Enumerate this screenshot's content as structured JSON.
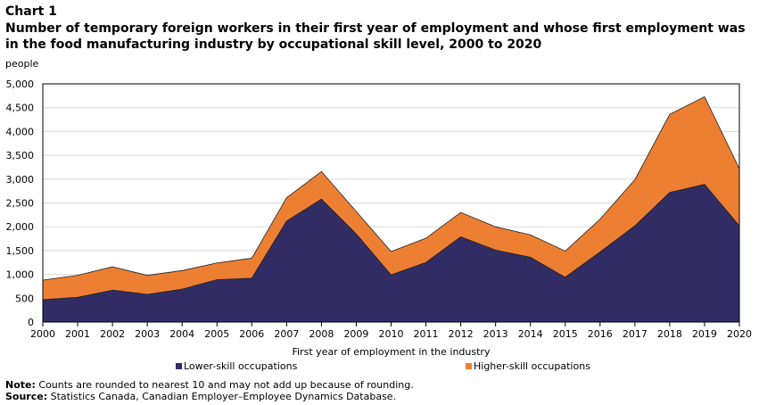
{
  "header": {
    "chart_number": "Chart 1",
    "title": "Number of temporary foreign workers in their first year of employment and whose first employment was in the food manufacturing industry by occupational skill level, 2000 to 2020"
  },
  "chart_data": {
    "type": "area",
    "stacked": true,
    "title": "Number of temporary foreign workers in their first year of employment and whose first employment was in the food manufacturing industry by occupational skill level, 2000 to 2020",
    "ylabel": "people",
    "xlabel": "First year of employment in the industry",
    "ylim": [
      0,
      5000
    ],
    "yticks": [
      "0",
      "500",
      "1,000",
      "1,500",
      "2,000",
      "2,500",
      "3,000",
      "3,500",
      "4,000",
      "4,500",
      "5,000"
    ],
    "categories": [
      "2000",
      "2001",
      "2002",
      "2003",
      "2004",
      "2005",
      "2006",
      "2007",
      "2008",
      "2009",
      "2010",
      "2011",
      "2012",
      "2013",
      "2014",
      "2015",
      "2016",
      "2017",
      "2018",
      "2019",
      "2020"
    ],
    "series": [
      {
        "name": "Lower-skill occupations",
        "color": "#312d64",
        "values": [
          470,
          520,
          670,
          580,
          690,
          890,
          920,
          2120,
          2580,
          1850,
          990,
          1250,
          1790,
          1510,
          1360,
          940,
          1470,
          2020,
          2720,
          2890,
          2020
        ]
      },
      {
        "name": "Higher-skill occupations",
        "color": "#ed7f33",
        "values": [
          410,
          460,
          490,
          400,
          390,
          350,
          420,
          490,
          580,
          470,
          490,
          510,
          510,
          490,
          470,
          550,
          690,
          970,
          1640,
          1840,
          1200
        ]
      }
    ],
    "grid": true,
    "legend": "bottom"
  },
  "footer": {
    "note_label": "Note:",
    "note": " Counts are rounded to nearest 10 and may not add up because of rounding.",
    "source_label": "Source:",
    "source": " Statistics Canada, Canadian Employer–Employee Dynamics Database."
  }
}
